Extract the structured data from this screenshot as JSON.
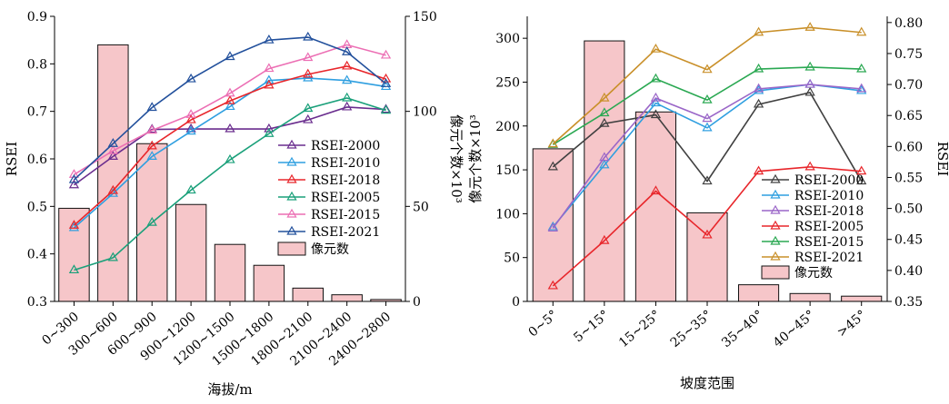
{
  "chart_data": [
    {
      "type": "bar-line-combo",
      "title": "",
      "categories": [
        "0~300",
        "300~600",
        "600~900",
        "900~1200",
        "1200~1500",
        "1500~1800",
        "1800~2100",
        "2100~2400",
        "2400~2800"
      ],
      "xlabel": "海拔/m",
      "ylabel_left": "RSEI",
      "ylabel_right": "像元个数×10³",
      "ylim_left": [
        0.3,
        0.9
      ],
      "yticks_left": [
        "0.3",
        "0.4",
        "0.5",
        "0.6",
        "0.7",
        "0.8",
        "0.9"
      ],
      "ylim_right": [
        0,
        150
      ],
      "yticks_right": [
        "0",
        "50",
        "100",
        "150"
      ],
      "bars": {
        "name": "像元数",
        "axis": "right",
        "color": "#f6c6c9",
        "values": [
          49,
          135,
          83,
          51,
          30,
          19,
          7,
          3.5,
          1
        ]
      },
      "series": [
        {
          "name": "RSEI-2000",
          "color": "#6a2d8e",
          "values": [
            0.545,
            0.605,
            0.662,
            0.663,
            0.663,
            0.663,
            0.682,
            0.709,
            0.704
          ]
        },
        {
          "name": "RSEI-2010",
          "color": "#2f9fe0",
          "values": [
            0.455,
            0.527,
            0.605,
            0.658,
            0.71,
            0.765,
            0.77,
            0.765,
            0.752
          ]
        },
        {
          "name": "RSEI-2018",
          "color": "#e8262b",
          "values": [
            0.46,
            0.533,
            0.627,
            0.682,
            0.722,
            0.755,
            0.778,
            0.795,
            0.768
          ]
        },
        {
          "name": "RSEI-2005",
          "color": "#1aa07a",
          "values": [
            0.366,
            0.392,
            0.466,
            0.534,
            0.598,
            0.653,
            0.706,
            0.728,
            0.702
          ]
        },
        {
          "name": "RSEI-2015",
          "color": "#ec6fb4",
          "values": [
            0.567,
            0.617,
            0.66,
            0.693,
            0.738,
            0.79,
            0.813,
            0.84,
            0.818
          ]
        },
        {
          "name": "RSEI-2021",
          "color": "#22509c",
          "values": [
            0.556,
            0.632,
            0.708,
            0.768,
            0.815,
            0.85,
            0.856,
            0.825,
            0.758
          ]
        }
      ]
    },
    {
      "type": "bar-line-combo",
      "title": "",
      "categories": [
        "0~5°",
        "5~15°",
        "15~25°",
        "25~35°",
        "35~40°",
        "40~45°",
        ">45°"
      ],
      "xlabel": "坡度范围",
      "ylabel_left": "像元个数×10³",
      "ylabel_right": "RSEI",
      "ylim_left": [
        0,
        325
      ],
      "yticks_left": [
        "0",
        "50",
        "100",
        "150",
        "200",
        "250",
        "300"
      ],
      "ylim_right": [
        0.35,
        0.81
      ],
      "yticks_right": [
        "0.35",
        "0.40",
        "0.45",
        "0.50",
        "0.55",
        "0.60",
        "0.65",
        "0.70",
        "0.75",
        "0.80"
      ],
      "bars": {
        "name": "像元数",
        "axis": "left",
        "color": "#f6c6c9",
        "values": [
          174,
          297,
          216,
          101,
          19,
          9,
          6
        ]
      },
      "series": [
        {
          "name": "RSEI-2000",
          "color": "#404040",
          "values": [
            0.567,
            0.637,
            0.651,
            0.544,
            0.668,
            0.687,
            0.544
          ]
        },
        {
          "name": "RSEI-2010",
          "color": "#2f9fe0",
          "values": [
            0.47,
            0.57,
            0.67,
            0.63,
            0.69,
            0.7,
            0.69
          ]
        },
        {
          "name": "RSEI-2018",
          "color": "#9a66c8",
          "values": [
            0.468,
            0.582,
            0.678,
            0.645,
            0.693,
            0.7,
            0.693
          ]
        },
        {
          "name": "RSEI-2005",
          "color": "#e8262b",
          "values": [
            0.375,
            0.448,
            0.528,
            0.457,
            0.56,
            0.567,
            0.56
          ]
        },
        {
          "name": "RSEI-2015",
          "color": "#2aa852",
          "values": [
            0.603,
            0.654,
            0.709,
            0.675,
            0.725,
            0.728,
            0.725
          ]
        },
        {
          "name": "RSEI-2021",
          "color": "#c9902a",
          "values": [
            0.604,
            0.678,
            0.757,
            0.724,
            0.784,
            0.792,
            0.784
          ]
        }
      ]
    }
  ]
}
